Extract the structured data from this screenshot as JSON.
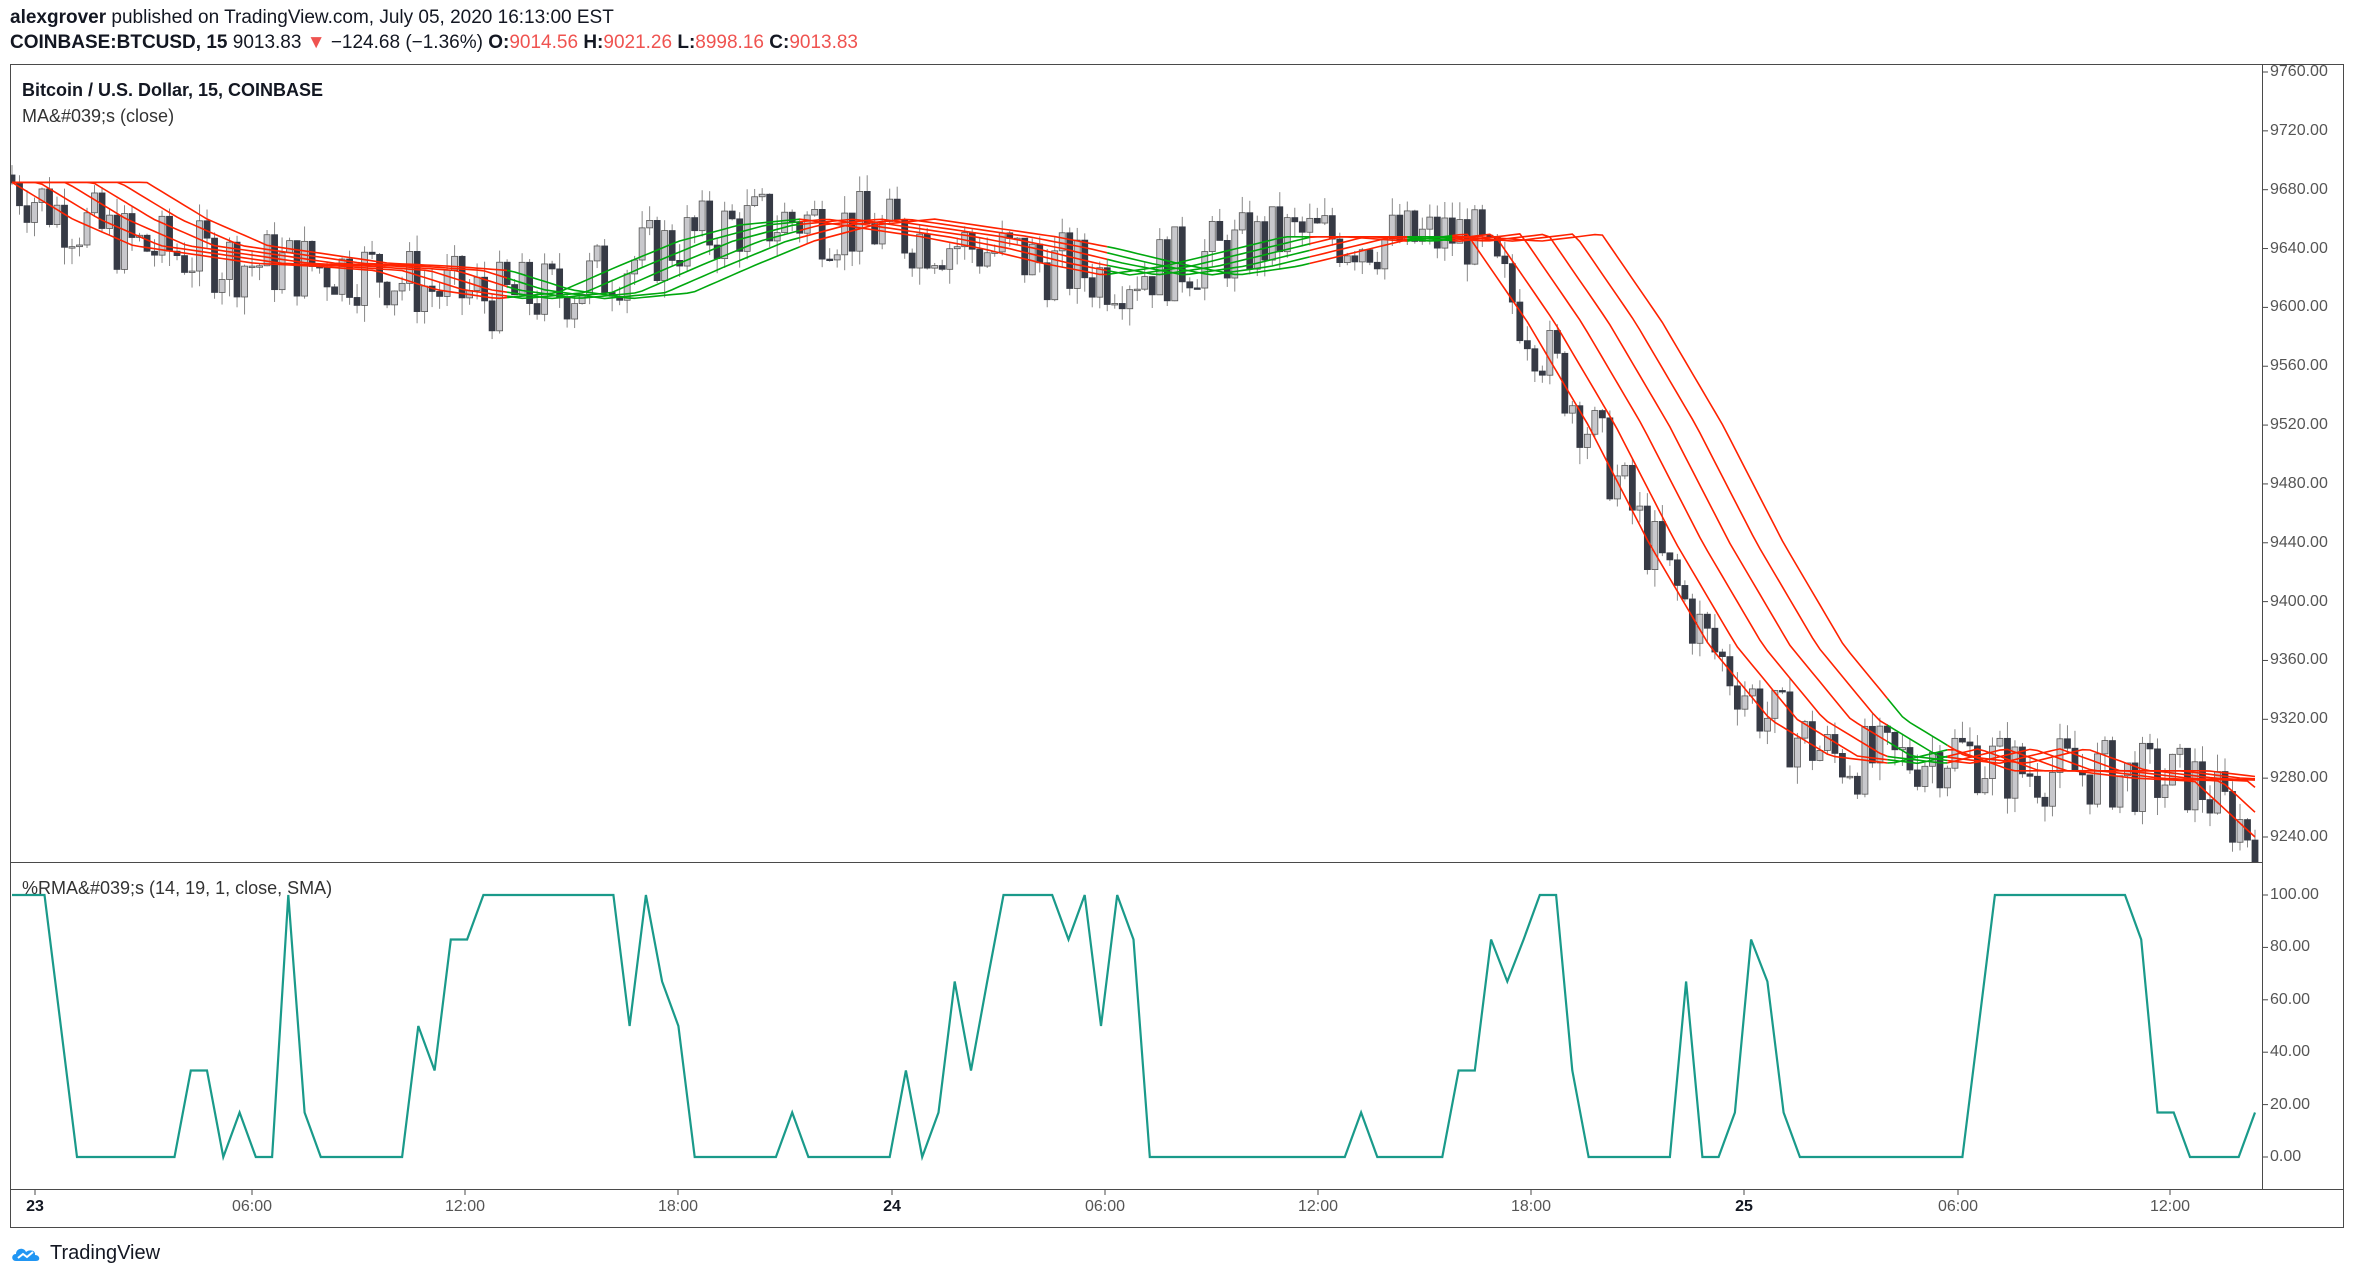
{
  "header": {
    "author": "alexgrover",
    "published": "published on TradingView.com, July 05, 2020 16:13:00 EST",
    "symbol": "COINBASE:BTCUSD, 15",
    "last": "9013.83",
    "change": "−124.68 (−1.36%)",
    "o_label": "O:",
    "o_value": "9014.56",
    "h_label": "H:",
    "h_value": "9021.26",
    "l_label": "L:",
    "l_value": "8998.16",
    "c_label": "C:",
    "c_value": "9013.83"
  },
  "main_pane": {
    "title": "Bitcoin / U.S. Dollar, 15, COINBASE",
    "indicator": "MA&#039;s (close)",
    "price_labels": [
      "9760.00",
      "9720.00",
      "9680.00",
      "9640.00",
      "9600.00",
      "9560.00",
      "9520.00",
      "9480.00",
      "9440.00",
      "9400.00",
      "9360.00",
      "9320.00",
      "9280.00",
      "9240.00"
    ]
  },
  "sub_pane": {
    "indicator": "%RMA&#039;s (14, 19, 1, close, SMA)",
    "value_labels": [
      "100.00",
      "80.00",
      "60.00",
      "40.00",
      "20.00",
      "0.00"
    ]
  },
  "time_axis": [
    "23",
    "06:00",
    "12:00",
    "18:00",
    "24",
    "06:00",
    "12:00",
    "18:00",
    "25",
    "06:00",
    "12:00"
  ],
  "footer": {
    "brand": "TradingView"
  },
  "colors": {
    "bull_ma": "#00a80e",
    "bear_ma": "#ff2200",
    "osc": "#1a9a8a",
    "candle_up": "#c8c8cc",
    "candle_dn": "#363a45"
  },
  "chart_data": [
    {
      "type": "line",
      "title": "Bitcoin / U.S. Dollar, 15, COINBASE",
      "ylim": [
        9220,
        9765
      ],
      "series": [
        {
          "name": "MA&#039;s (close)",
          "values": [
            9685,
            9660,
            9642,
            9636,
            9630,
            9628,
            9625,
            9612,
            9606,
            9610,
            9628,
            9645,
            9656,
            9660,
            9654,
            9648,
            9640,
            9630,
            9622,
            9628,
            9638,
            9648,
            9648,
            9645,
            9650,
            9590,
            9520,
            9440,
            9370,
            9320,
            9295,
            9290,
            9300,
            9285,
            9285,
            9280,
            9278,
            9240
          ]
        }
      ]
    },
    {
      "type": "line",
      "title": "%RMA&#039;s (14, 19, 1, close, SMA)",
      "ylim": [
        -10,
        105
      ],
      "series": [
        {
          "name": "%RMA&#039;s (14, 19, 1, close, SMA)",
          "values": [
            100,
            100,
            100,
            50,
            0,
            0,
            0,
            0,
            0,
            0,
            0,
            33,
            33,
            0,
            17,
            0,
            0,
            100,
            17,
            0,
            0,
            0,
            0,
            0,
            0,
            50,
            33,
            83,
            83,
            100,
            100,
            100,
            100,
            100,
            100,
            100,
            100,
            100,
            50,
            100,
            67,
            50,
            0,
            0,
            0,
            0,
            0,
            0,
            17,
            0,
            0,
            0,
            0,
            0,
            0,
            33,
            0,
            17,
            67,
            33,
            67,
            100,
            100,
            100,
            100,
            83,
            100,
            50,
            100,
            83,
            0,
            0,
            0,
            0,
            0,
            0,
            0,
            0,
            0,
            0,
            0,
            0,
            0,
            17,
            0,
            0,
            0,
            0,
            0,
            33,
            33,
            83,
            67,
            83,
            100,
            100,
            33,
            0,
            0,
            0,
            0,
            0,
            0,
            67,
            0,
            0,
            17,
            83,
            67,
            17,
            0,
            0,
            0,
            0,
            0,
            0,
            0,
            0,
            0,
            0,
            0,
            50,
            100,
            100,
            100,
            100,
            100,
            100,
            100,
            100,
            100,
            83,
            17,
            17,
            0,
            0,
            0,
            0,
            17
          ]
        }
      ]
    }
  ]
}
